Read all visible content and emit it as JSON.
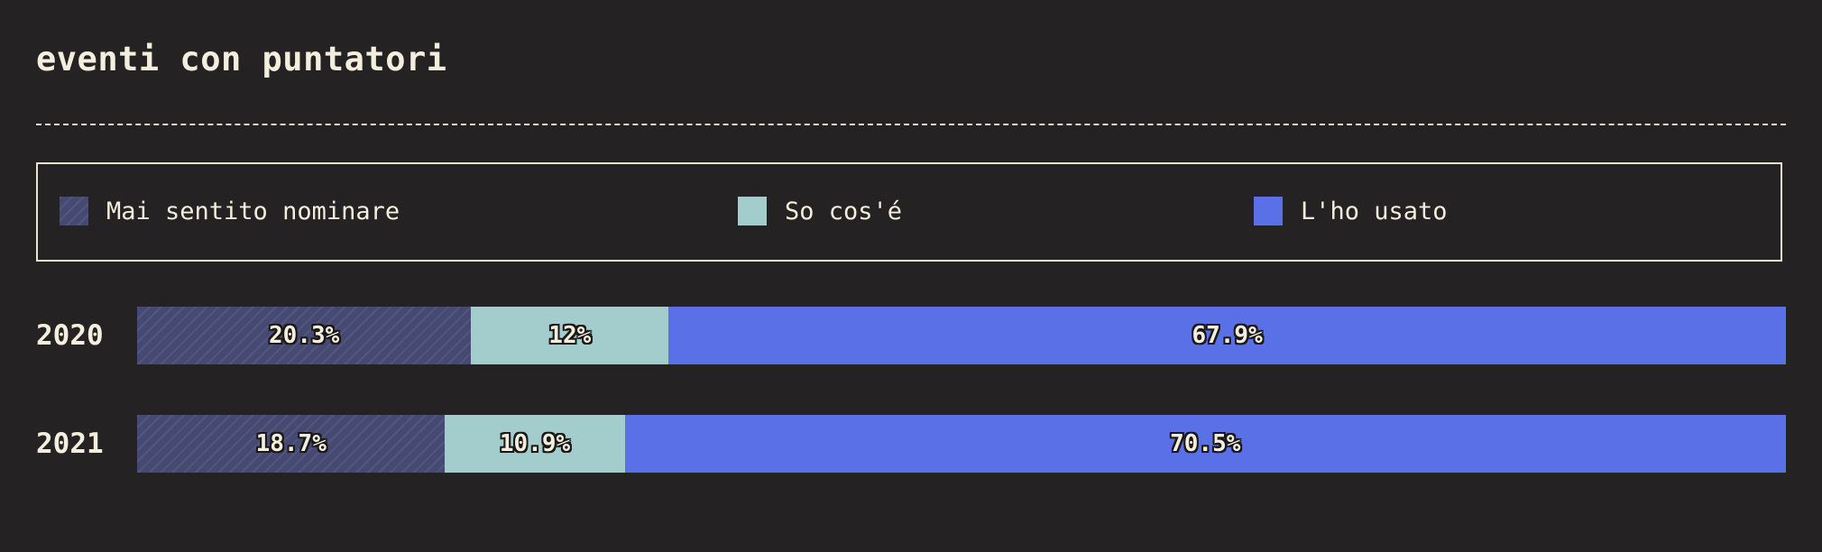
{
  "header": {
    "title": "eventi con puntatori"
  },
  "legend": {
    "items": [
      {
        "label": "Mai sentito nominare",
        "color": "#464a73",
        "pattern": "hatched"
      },
      {
        "label": "So cos'é",
        "color": "#a3cccc"
      },
      {
        "label": "L'ho usato",
        "color": "#5970e6"
      }
    ]
  },
  "chart_data": {
    "type": "bar",
    "orientation": "horizontal",
    "stacked": true,
    "normalized": true,
    "title": "eventi con puntatori",
    "categories": [
      "2020",
      "2021"
    ],
    "series": [
      {
        "name": "Mai sentito nominare",
        "values": [
          20.3,
          18.7
        ],
        "labels": [
          "20.3%",
          "18.7%"
        ],
        "color": "#464a73",
        "pattern": "hatched"
      },
      {
        "name": "So cos'é",
        "values": [
          12,
          10.9
        ],
        "labels": [
          "12%",
          "10.9%"
        ],
        "color": "#a3cccc"
      },
      {
        "name": "L'ho usato",
        "values": [
          67.9,
          70.5
        ],
        "labels": [
          "67.9%",
          "70.5%"
        ],
        "color": "#5970e6"
      }
    ],
    "unit": "%",
    "xlim": [
      0,
      100
    ],
    "legend_position": "top",
    "grid": false
  }
}
